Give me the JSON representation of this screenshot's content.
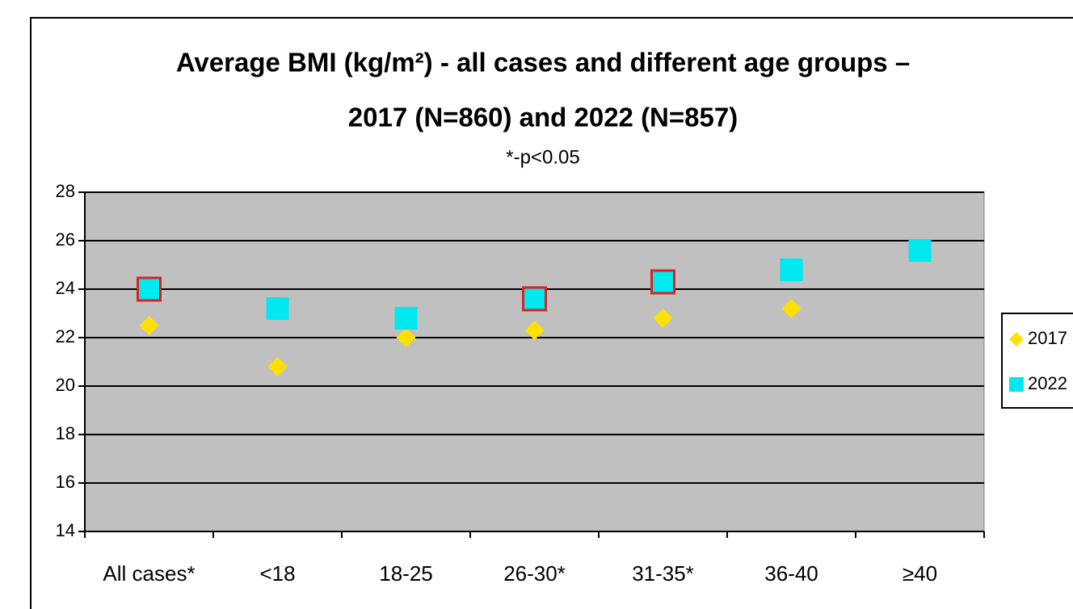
{
  "chart_data": {
    "type": "scatter",
    "title": [
      "Average BMI (kg/m²) - all cases and different age groups –",
      "2017 (N=860) and 2022 (N=857)"
    ],
    "subtitle": "*-p<0.05",
    "categories": [
      "All cases*",
      "<18",
      "18-25",
      "26-30*",
      "31-35*",
      "36-40",
      "≥40"
    ],
    "highlight": [
      true,
      false,
      false,
      true,
      true,
      false,
      false
    ],
    "highlight_color": "#e02020",
    "series": [
      {
        "name": "2017",
        "color": "#ffe000",
        "marker": "diamond",
        "values": [
          22.5,
          20.8,
          22.0,
          22.3,
          22.8,
          23.2,
          null
        ]
      },
      {
        "name": "2022",
        "color": "#00e8f0",
        "marker": "square",
        "values": [
          24.0,
          23.2,
          22.8,
          23.6,
          24.3,
          24.8,
          25.6
        ]
      }
    ],
    "ylim": [
      14,
      28
    ],
    "yticks": [
      14,
      16,
      18,
      20,
      22,
      24,
      26,
      28
    ],
    "grid": true,
    "plot_background": "#c0c0c0",
    "legend": "right"
  }
}
